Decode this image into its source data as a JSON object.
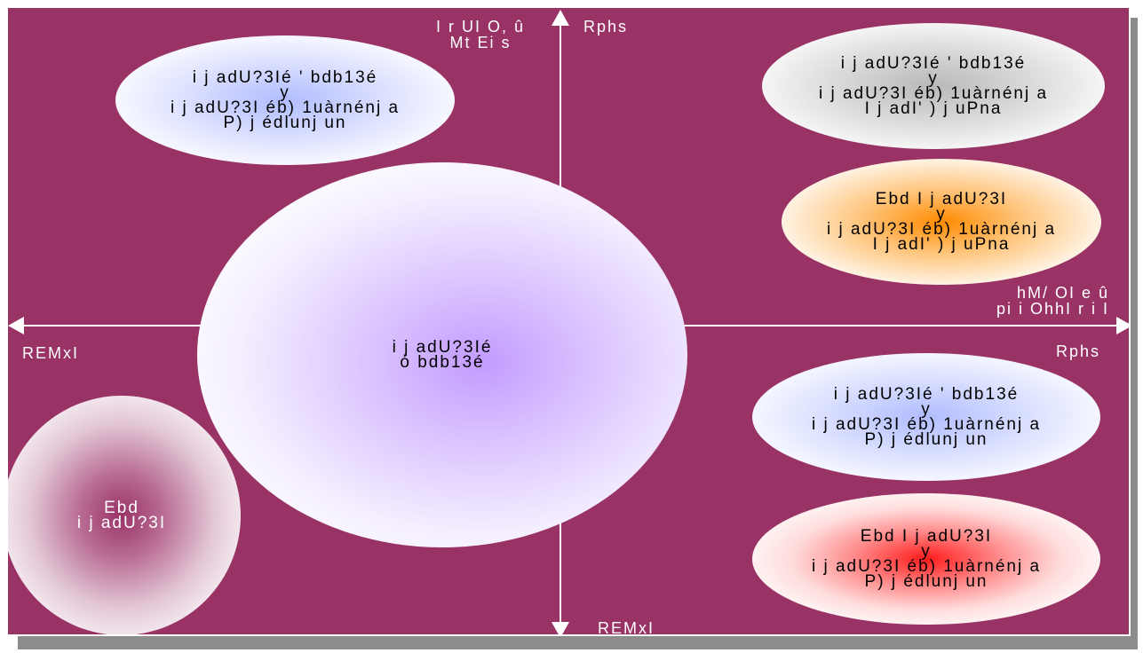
{
  "colors": {
    "background": "#993366",
    "axis": "#ffffff",
    "blue_glow": "#b0bcff",
    "grey_glow": "#b8b8b8",
    "orange_glow": "#ff8a00",
    "purple_glow": "#c39bff",
    "red_glow": "#ff1a1a",
    "maroon_glow": "#993366"
  },
  "axes": {
    "top_label_left": [
      "I r UI O, û",
      "Mt Ei s"
    ],
    "top_label_right": "Rphs",
    "bottom_label": "REMxI",
    "left_label": "REMxI",
    "right_label_upper": [
      "hM/ OI e û",
      "pi i OhhI r i I"
    ],
    "right_label_lower": "Rphs"
  },
  "ellipses": {
    "top_left": {
      "lines": [
        "i j adU?3Ié ' bdb13é",
        "y",
        "i j adU?3I éb) 1uàrnénj a",
        "P) j édlunj un"
      ],
      "glow": "blue"
    },
    "top_right": {
      "lines": [
        "i j adU?3Ié ' bdb13é",
        "y",
        "i j adU?3I éb) 1uàrnénj a",
        "I j adI' ) j uPna"
      ],
      "glow": "grey"
    },
    "mid_right": {
      "lines": [
        "Ebd I j adU?3I",
        "y",
        "i j adU?3I éb) 1uàrnénj a",
        "I j adI' ) j uPna"
      ],
      "glow": "orange"
    },
    "center": {
      "lines": [
        "i j adU?3Ié",
        "ó bdb13é"
      ],
      "glow": "purple"
    },
    "lower_right": {
      "lines": [
        "i j adU?3Ié ' bdb13é",
        "y",
        "i j adU?3I éb) 1uàrnénj a",
        "P) j édlunj un"
      ],
      "glow": "blue"
    },
    "bottom_right": {
      "lines": [
        "Ebd I j adU?3I",
        "y",
        "i j adU?3I éb) 1uàrnénj a",
        "P) j édlunj un"
      ],
      "glow": "red"
    },
    "bottom_left": {
      "lines": [
        "Ebd",
        "i j adU?3I"
      ],
      "glow": "maroon"
    }
  }
}
